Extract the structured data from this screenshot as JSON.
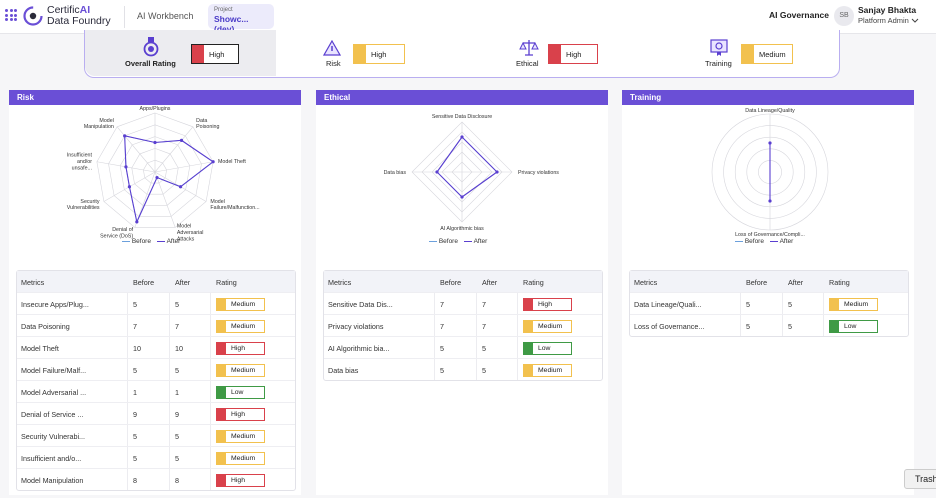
{
  "header": {
    "brand_prefix": "Certific",
    "brand_ai": "AI",
    "brand_line2": "Data Foundry",
    "workbench": "AI Workbench",
    "project_label": "Project",
    "project_value": "Showc... (dev)",
    "section": "AI Governance",
    "avatar_initials": "SB",
    "user_name": "Sanjay Bhakta",
    "user_role": "Platform Admin"
  },
  "summary": {
    "overall": {
      "label": "Overall Rating",
      "rating": "High"
    },
    "risk": {
      "label": "Risk",
      "rating": "High"
    },
    "ethical": {
      "label": "Ethical",
      "rating": "High"
    },
    "training": {
      "label": "Training",
      "rating": "Medium"
    }
  },
  "colors": {
    "accent": "#6a4fd6",
    "high": "#d9414b",
    "medium": "#f2c14e",
    "low": "#3f9a45",
    "before": "#6ca0dc",
    "after": "#5a3fd0"
  },
  "legend": {
    "before": "Before",
    "after": "After"
  },
  "table_headers": {
    "metrics": "Metrics",
    "before": "Before",
    "after": "After",
    "rating": "Rating"
  },
  "panels": [
    {
      "title": "Risk",
      "radar_labels": [
        [
          "Apps/Plugins"
        ],
        [
          "Data",
          "Poisoning"
        ],
        [
          "Model Theft"
        ],
        [
          "Model",
          "Failure/Malfunction..."
        ],
        [
          "Model",
          "Adversarial",
          "Attacks"
        ],
        [
          "Denial of",
          "Service (DoS)"
        ],
        [
          "Security",
          "Vulnerabilities"
        ],
        [
          "Insufficient",
          "and/or",
          "unsafe..."
        ],
        [
          "Model",
          "Manipulation"
        ]
      ],
      "rows": [
        {
          "metric": "Insecure Apps/Plug...",
          "before": "5",
          "after": "5",
          "rating": "Medium"
        },
        {
          "metric": "Data Poisoning",
          "before": "7",
          "after": "7",
          "rating": "Medium"
        },
        {
          "metric": "Model Theft",
          "before": "10",
          "after": "10",
          "rating": "High"
        },
        {
          "metric": "Model Failure/Malf...",
          "before": "5",
          "after": "5",
          "rating": "Medium"
        },
        {
          "metric": "Model Adversarial ...",
          "before": "1",
          "after": "1",
          "rating": "Low"
        },
        {
          "metric": "Denial of Service ...",
          "before": "9",
          "after": "9",
          "rating": "High"
        },
        {
          "metric": "Security Vulnerabi...",
          "before": "5",
          "after": "5",
          "rating": "Medium"
        },
        {
          "metric": "Insufficient and/o...",
          "before": "5",
          "after": "5",
          "rating": "Medium"
        },
        {
          "metric": "Model Manipulation",
          "before": "8",
          "after": "8",
          "rating": "High"
        }
      ]
    },
    {
      "title": "Ethical",
      "radar_labels": [
        [
          "Sensitive Data Disclosure"
        ],
        [
          "Privacy violations"
        ],
        [
          "AI Algorithmic bias"
        ],
        [
          "Data bias"
        ]
      ],
      "rows": [
        {
          "metric": "Sensitive Data Dis...",
          "before": "7",
          "after": "7",
          "rating": "High"
        },
        {
          "metric": "Privacy violations",
          "before": "7",
          "after": "7",
          "rating": "Medium"
        },
        {
          "metric": "AI Algorithmic bia...",
          "before": "5",
          "after": "5",
          "rating": "Low"
        },
        {
          "metric": "Data bias",
          "before": "5",
          "after": "5",
          "rating": "Medium"
        }
      ]
    },
    {
      "title": "Training",
      "radar_labels": [
        [
          "Data Lineage/Quality"
        ],
        [
          "Loss of Governance/Compli..."
        ]
      ],
      "rows": [
        {
          "metric": "Data Lineage/Quali...",
          "before": "5",
          "after": "5",
          "rating": "Medium"
        },
        {
          "metric": "Loss of Governance...",
          "before": "5",
          "after": "5",
          "rating": "Low"
        }
      ]
    }
  ],
  "trash_label": "Trash"
}
